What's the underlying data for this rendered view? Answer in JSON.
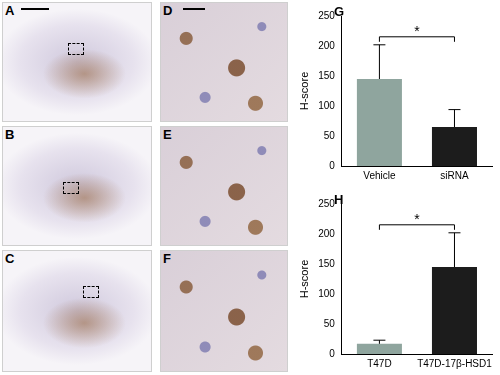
{
  "panels": [
    "A",
    "B",
    "C",
    "D",
    "E",
    "F"
  ],
  "chart_data": [
    {
      "panel": "G",
      "type": "bar",
      "categories": [
        "Vehicle",
        "siRNA"
      ],
      "values": [
        145,
        65
      ],
      "errors": [
        57,
        29
      ],
      "colors": [
        "#8fa59e",
        "#1c1c1c"
      ],
      "y_label": "H-score",
      "ylim": [
        0,
        250
      ],
      "yticks": [
        0,
        50,
        100,
        150,
        200,
        250
      ],
      "annotation": "*",
      "grid": false
    },
    {
      "panel": "H",
      "type": "bar",
      "categories": [
        "T47D",
        "T47D-17β-HSD1"
      ],
      "values": [
        17,
        145
      ],
      "errors": [
        6,
        57
      ],
      "colors": [
        "#8fa59e",
        "#1c1c1c"
      ],
      "y_label": "H-score",
      "ylim": [
        0,
        250
      ],
      "yticks": [
        0,
        50,
        100,
        150,
        200,
        250
      ],
      "annotation": "*",
      "grid": false
    }
  ]
}
